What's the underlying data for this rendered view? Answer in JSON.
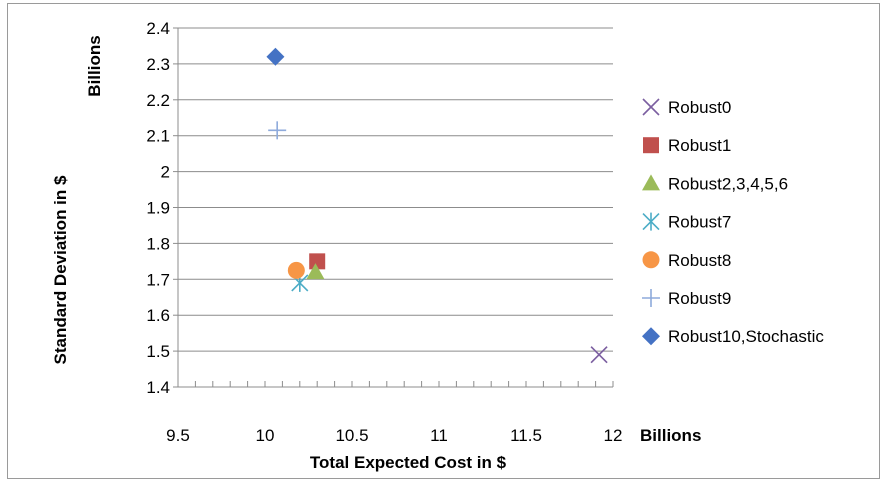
{
  "chart_data": {
    "type": "scatter",
    "title": "",
    "xlabel": "Total Expected Cost in $",
    "ylabel": "Standard Deviation  in $",
    "x_units_label": "Billions",
    "y_units_label": "Billions",
    "xlim": [
      9.5,
      12
    ],
    "ylim": [
      1.4,
      2.4
    ],
    "x_ticks": [
      "9.5",
      "10",
      "10.5",
      "11",
      "11.5",
      "12"
    ],
    "y_ticks": [
      "1.4",
      "1.5",
      "1.6",
      "1.7",
      "1.8",
      "1.9",
      "2",
      "2.1",
      "2.2",
      "2.3",
      "2.4"
    ],
    "grid": "horizontal",
    "legend_position": "right",
    "series": [
      {
        "name": "Robust0",
        "marker": "x",
        "color": "#7b5ea0",
        "x": 11.92,
        "y": 1.49
      },
      {
        "name": "Robust1",
        "marker": "square",
        "color": "#c0504d",
        "x": 10.3,
        "y": 1.75
      },
      {
        "name": "Robust2,3,4,5,6",
        "marker": "triangle",
        "color": "#9bbb59",
        "x": 10.29,
        "y": 1.72
      },
      {
        "name": "Robust7",
        "marker": "asterisk",
        "color": "#4bacc6",
        "x": 10.2,
        "y": 1.69
      },
      {
        "name": "Robust8",
        "marker": "circle",
        "color": "#f79646",
        "x": 10.18,
        "y": 1.725
      },
      {
        "name": "Robust9",
        "marker": "plus",
        "color": "#8eaadb",
        "x": 10.07,
        "y": 2.115
      },
      {
        "name": "Robust10,Stochastic",
        "marker": "diamond",
        "color": "#4472c4",
        "x": 10.06,
        "y": 2.32
      }
    ]
  }
}
